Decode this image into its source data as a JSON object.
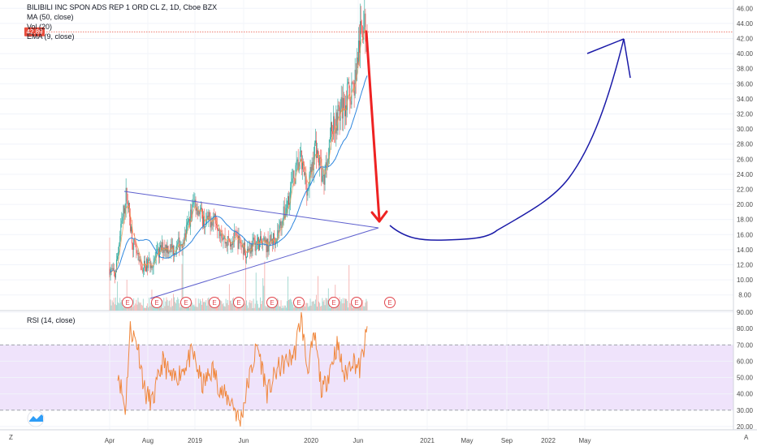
{
  "chart_data": [
    {
      "type": "candlestick",
      "title": "BILIBILI INC SPON ADS REP 1 ORD CL Z, 1D, Cboe BZX",
      "indicators": [
        "MA (50, close)",
        "Vol (20)",
        "EMA (9, close)"
      ],
      "current_price": "42.89",
      "y_ticks": [
        "46.00",
        "44.00",
        "42.00",
        "40.00",
        "38.00",
        "36.00",
        "34.00",
        "32.00",
        "30.00",
        "28.00",
        "26.00",
        "24.00",
        "22.00",
        "20.00",
        "18.00",
        "16.00",
        "14.00",
        "12.00",
        "10.00",
        "8.00"
      ],
      "ylim": [
        7,
        47
      ],
      "x_ticks": [
        "Apr",
        "Aug",
        "2019",
        "Jun",
        "2020",
        "Jun",
        "2021",
        "May",
        "Sep",
        "2022",
        "May"
      ],
      "earnings_marker": "E",
      "key_prices": [
        {
          "t": 0.0,
          "v": 11.5
        },
        {
          "t": 0.02,
          "v": 10.5
        },
        {
          "t": 0.045,
          "v": 17
        },
        {
          "t": 0.065,
          "v": 21.5
        },
        {
          "t": 0.09,
          "v": 15
        },
        {
          "t": 0.12,
          "v": 11.5
        },
        {
          "t": 0.17,
          "v": 12.5
        },
        {
          "t": 0.21,
          "v": 14.5
        },
        {
          "t": 0.25,
          "v": 14
        },
        {
          "t": 0.29,
          "v": 15.5
        },
        {
          "t": 0.33,
          "v": 20.5
        },
        {
          "t": 0.37,
          "v": 17.5
        },
        {
          "t": 0.41,
          "v": 18.5
        },
        {
          "t": 0.45,
          "v": 15
        },
        {
          "t": 0.49,
          "v": 15.5
        },
        {
          "t": 0.53,
          "v": 13.8
        },
        {
          "t": 0.57,
          "v": 15
        },
        {
          "t": 0.61,
          "v": 14.5
        },
        {
          "t": 0.65,
          "v": 16
        },
        {
          "t": 0.68,
          "v": 19
        },
        {
          "t": 0.71,
          "v": 23
        },
        {
          "t": 0.74,
          "v": 26
        },
        {
          "t": 0.77,
          "v": 22
        },
        {
          "t": 0.8,
          "v": 28
        },
        {
          "t": 0.83,
          "v": 23
        },
        {
          "t": 0.86,
          "v": 30
        },
        {
          "t": 0.89,
          "v": 32
        },
        {
          "t": 0.92,
          "v": 34
        },
        {
          "t": 0.95,
          "v": 36
        },
        {
          "t": 0.98,
          "v": 44
        },
        {
          "t": 1.0,
          "v": 42.9
        }
      ]
    },
    {
      "type": "line",
      "title": "RSI (14, close)",
      "y_ticks": [
        "90.00",
        "80.00",
        "70.00",
        "60.00",
        "50.00",
        "40.00",
        "30.00",
        "20.00"
      ],
      "ylim": [
        18,
        91
      ],
      "band": [
        30,
        70
      ],
      "key_values": [
        {
          "t": 0.0,
          "v": 55
        },
        {
          "t": 0.03,
          "v": 30
        },
        {
          "t": 0.05,
          "v": 80
        },
        {
          "t": 0.08,
          "v": 70
        },
        {
          "t": 0.11,
          "v": 40
        },
        {
          "t": 0.14,
          "v": 35
        },
        {
          "t": 0.18,
          "v": 60
        },
        {
          "t": 0.22,
          "v": 48
        },
        {
          "t": 0.26,
          "v": 55
        },
        {
          "t": 0.3,
          "v": 65
        },
        {
          "t": 0.34,
          "v": 45
        },
        {
          "t": 0.38,
          "v": 55
        },
        {
          "t": 0.42,
          "v": 40
        },
        {
          "t": 0.46,
          "v": 35
        },
        {
          "t": 0.49,
          "v": 22
        },
        {
          "t": 0.52,
          "v": 45
        },
        {
          "t": 0.56,
          "v": 70
        },
        {
          "t": 0.6,
          "v": 40
        },
        {
          "t": 0.64,
          "v": 55
        },
        {
          "t": 0.68,
          "v": 60
        },
        {
          "t": 0.71,
          "v": 65
        },
        {
          "t": 0.735,
          "v": 88
        },
        {
          "t": 0.76,
          "v": 55
        },
        {
          "t": 0.79,
          "v": 75
        },
        {
          "t": 0.82,
          "v": 40
        },
        {
          "t": 0.85,
          "v": 55
        },
        {
          "t": 0.88,
          "v": 70
        },
        {
          "t": 0.91,
          "v": 50
        },
        {
          "t": 0.94,
          "v": 62
        },
        {
          "t": 0.97,
          "v": 55
        },
        {
          "t": 1.0,
          "v": 78
        }
      ]
    }
  ],
  "corner_left": "Z",
  "corner_right": "A"
}
